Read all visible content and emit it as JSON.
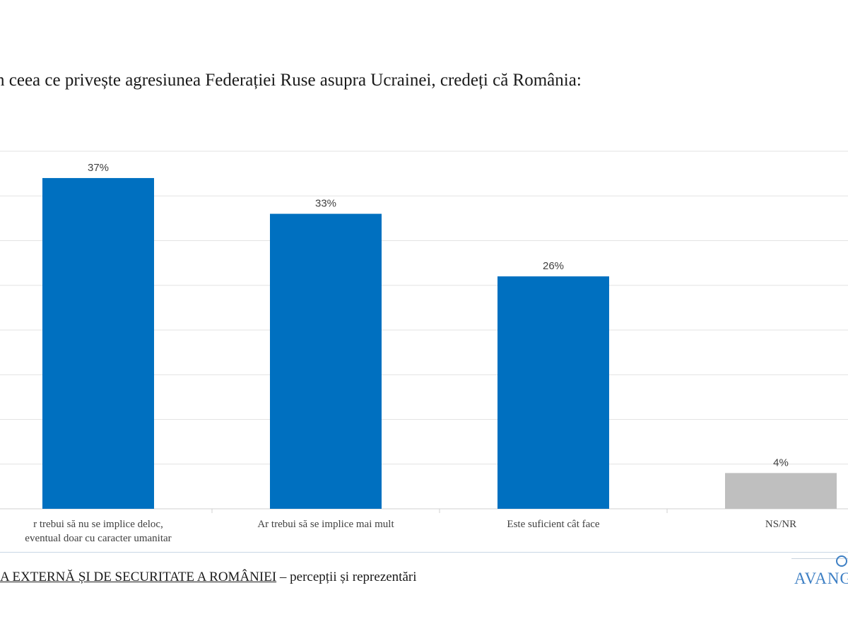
{
  "title": "n ceea ce privește agresiunea Federației Ruse asupra Ucrainei, credeți că România:",
  "chart_data": {
    "type": "bar",
    "categories": [
      "r trebui să nu se implice deloc, eventual doar cu caracter umanitar",
      "Ar trebui să se implice mai mult",
      "Este suficient cât face",
      "NS/NR"
    ],
    "values": [
      37,
      33,
      26,
      4
    ],
    "data_labels": [
      "37%",
      "33%",
      "26%",
      "4%"
    ],
    "bar_colors": [
      "#0070c0",
      "#0070c0",
      "#0070c0",
      "#bfbfbf"
    ],
    "ylim": [
      0,
      40
    ],
    "grid": true,
    "legend": "none"
  },
  "footer": {
    "underlined": "A EXTERNĂ ȘI DE SECURITATE A ROMÂNIEI",
    "rest": " – percepții și reprezentări"
  },
  "logo": {
    "text": "AVANG",
    "icon": "logo-icon",
    "brand_color": "#3d7fc4"
  }
}
